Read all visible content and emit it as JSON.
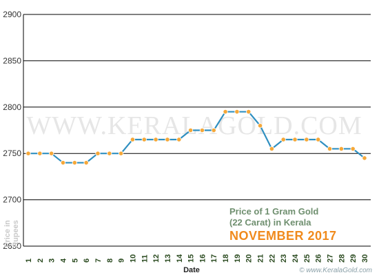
{
  "chart_data": {
    "type": "line",
    "title_line1": "Price of 1 Gram Gold",
    "title_line2": "(22 Carat) in Kerala",
    "title_month": "NOVEMBER 2017",
    "xlabel": "Date",
    "ylabel_line1": "Price in",
    "ylabel_line2": "Rupees",
    "watermark": "WWW.KERALAGOLD.COM",
    "credit": "© www.KeralaGold.com",
    "ylim": [
      2650,
      2900
    ],
    "yticks": [
      2650,
      2700,
      2750,
      2800,
      2850,
      2900
    ],
    "categories": [
      "1",
      "2",
      "3",
      "4",
      "5",
      "6",
      "7",
      "8",
      "9",
      "10",
      "11",
      "12",
      "13",
      "14",
      "15",
      "16",
      "17",
      "18",
      "19",
      "20",
      "21",
      "22",
      "23",
      "24",
      "25",
      "26",
      "27",
      "28",
      "29",
      "30"
    ],
    "values": [
      2750,
      2750,
      2750,
      2740,
      2740,
      2740,
      2750,
      2750,
      2750,
      2765,
      2765,
      2765,
      2765,
      2765,
      2775,
      2775,
      2775,
      2795,
      2795,
      2795,
      2780,
      2755,
      2765,
      2765,
      2765,
      2765,
      2755,
      2755,
      2755,
      2745
    ],
    "colors": {
      "line": "#2f8fc0",
      "point": "#f5a83a",
      "grid": "#000000",
      "title_month": "#f08a1c"
    }
  }
}
